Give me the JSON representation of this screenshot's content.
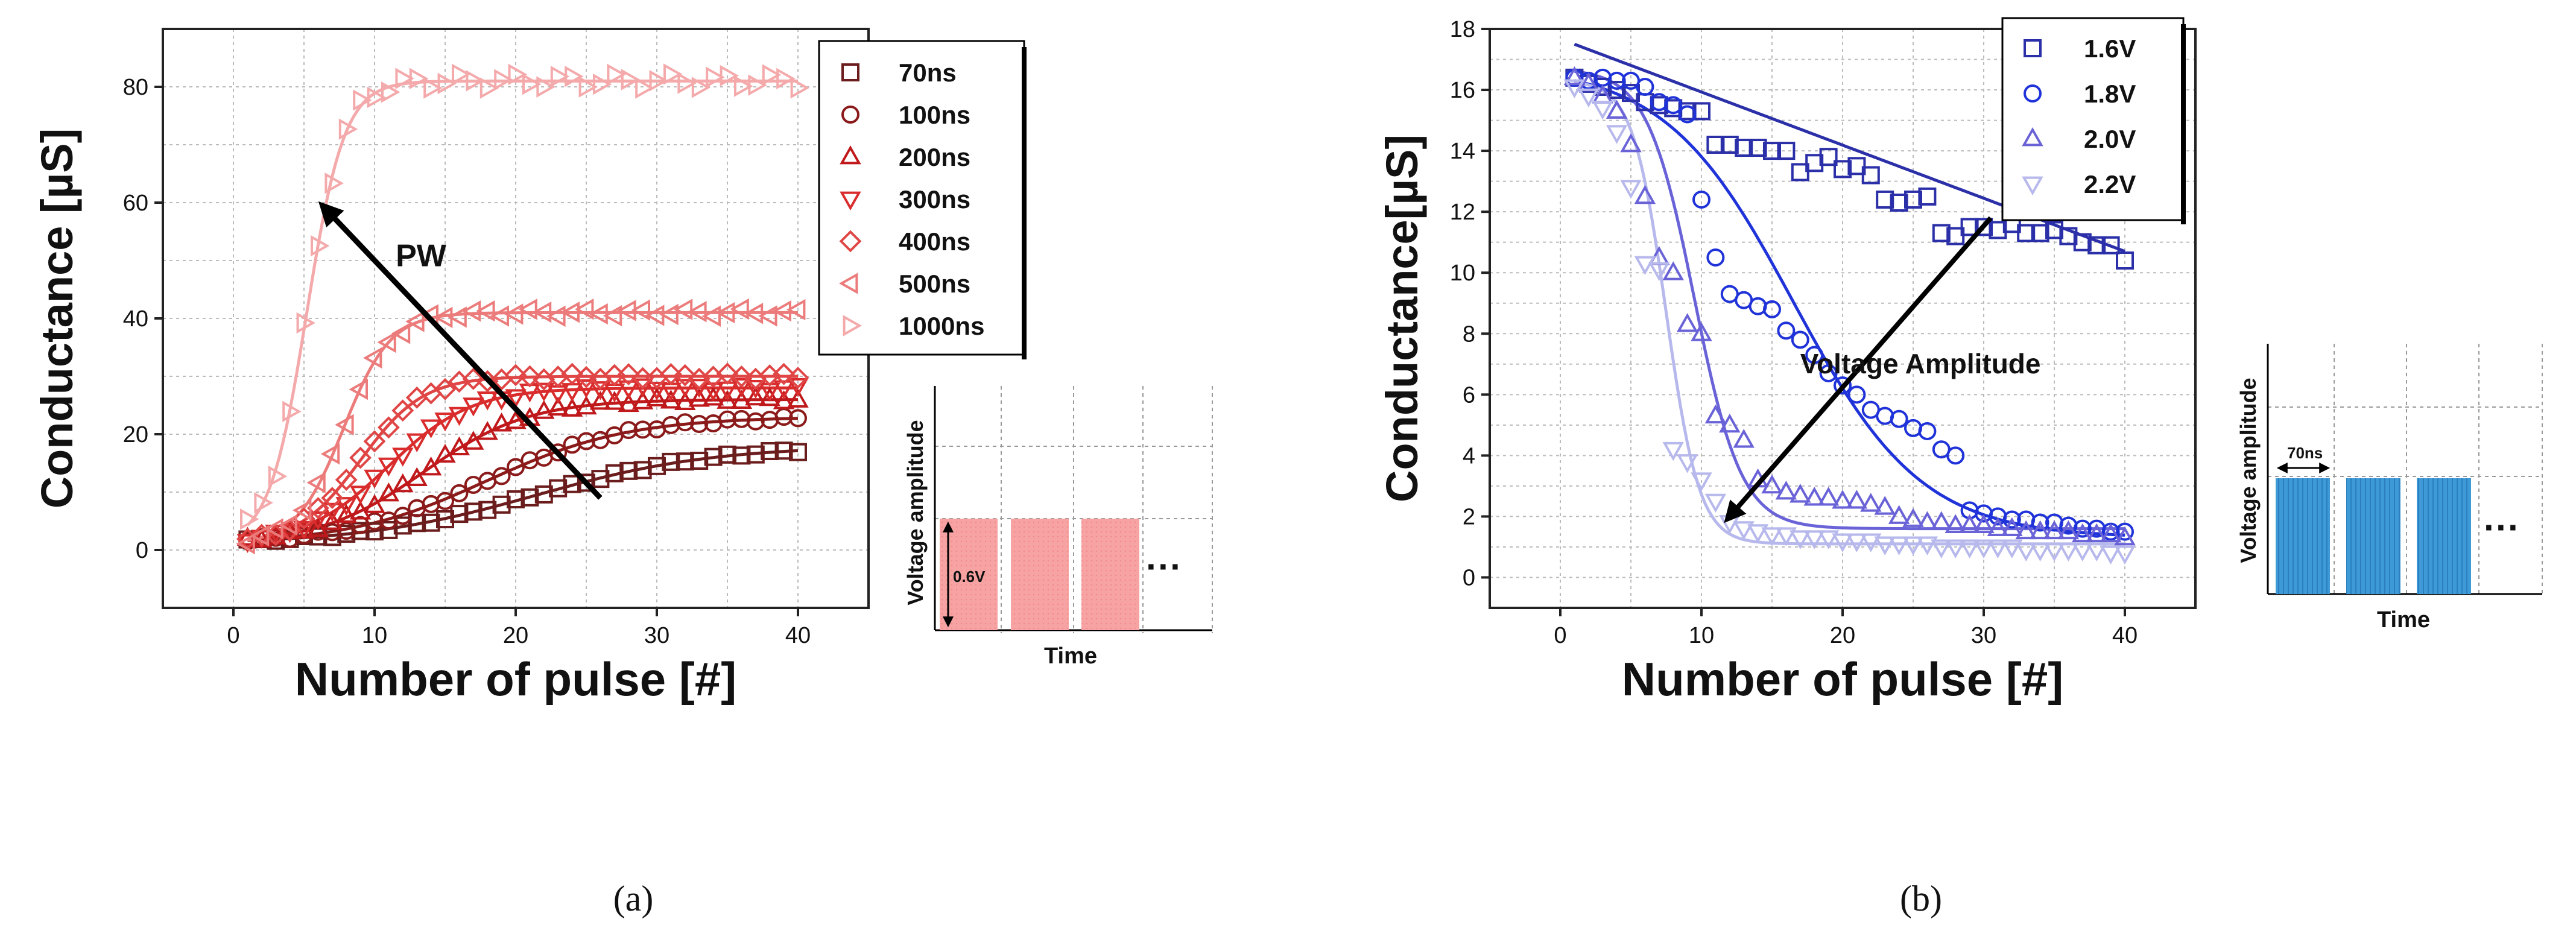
{
  "chart_data": [
    {
      "panel": "a",
      "type": "scatter",
      "caption": "(a)",
      "xlabel": "Number of pulse [#]",
      "ylabel": "Conductance [µS]",
      "xlim": [
        -5,
        45
      ],
      "ylim": [
        -10,
        90
      ],
      "xticks": [
        0,
        10,
        20,
        30,
        40
      ],
      "yticks": [
        0,
        20,
        40,
        60,
        80
      ],
      "grid": true,
      "legend_position": "top-right",
      "annotation": "PW",
      "arrow": {
        "from": [
          26,
          9
        ],
        "to": [
          6.5,
          59
        ]
      },
      "series": [
        {
          "name": "70ns",
          "marker": "square",
          "color": "#6b1d1d",
          "plateau": 18,
          "midpoint": 21.5,
          "rate": 0.16
        },
        {
          "name": "100ns",
          "marker": "circle",
          "color": "#8b1a1a",
          "plateau": 23,
          "midpoint": 18,
          "rate": 0.2
        },
        {
          "name": "200ns",
          "marker": "triangle-up",
          "color": "#c0191c",
          "plateau": 26,
          "midpoint": 13.5,
          "rate": 0.27
        },
        {
          "name": "300ns",
          "marker": "triangle-down",
          "color": "#d92c2c",
          "plateau": 28,
          "midpoint": 11,
          "rate": 0.34
        },
        {
          "name": "400ns",
          "marker": "diamond",
          "color": "#e04646",
          "plateau": 30,
          "midpoint": 9,
          "rate": 0.45
        },
        {
          "name": "500ns",
          "marker": "triangle-left",
          "color": "#ec7c7c",
          "plateau": 41,
          "midpoint": 7.8,
          "rate": 0.6
        },
        {
          "name": "1000ns",
          "marker": "triangle-right",
          "color": "#f4a9ab",
          "plateau": 81,
          "midpoint": 5.2,
          "rate": 0.75
        }
      ],
      "inset": {
        "ylabel": "Voltage amplitude",
        "xlabel": "Time",
        "pulse_label": "0.6V",
        "pulse_color": "#f7a3a3",
        "ellipsis": "···"
      }
    },
    {
      "panel": "b",
      "type": "scatter",
      "caption": "(b)",
      "xlabel": "Number of pulse [#]",
      "ylabel": "Conductance[µS]",
      "xlim": [
        -5,
        45
      ],
      "ylim": [
        -1,
        18
      ],
      "xticks": [
        0,
        10,
        20,
        30,
        40
      ],
      "yticks": [
        0,
        2,
        4,
        6,
        8,
        10,
        12,
        14,
        16,
        18
      ],
      "grid": true,
      "legend_position": "top-right",
      "annotation": "Voltage Amplitude",
      "arrow": {
        "from": [
          30.5,
          11.8
        ],
        "to": [
          12,
          2
        ]
      },
      "series": [
        {
          "name": "1.6V",
          "marker": "square",
          "color": "#2b2fa8",
          "x": [
            1,
            2,
            3,
            4,
            5,
            6,
            7,
            8,
            9,
            10,
            11,
            12,
            13,
            14,
            15,
            16,
            17,
            18,
            19,
            20,
            21,
            22,
            23,
            24,
            25,
            26,
            27,
            28,
            29,
            30,
            31,
            32,
            33,
            34,
            35,
            36,
            37,
            38,
            39,
            40
          ],
          "values": [
            16.4,
            16.2,
            16.1,
            16.0,
            15.9,
            15.6,
            15.5,
            15.4,
            15.3,
            15.3,
            14.2,
            14.2,
            14.1,
            14.1,
            14.0,
            14.0,
            13.3,
            13.6,
            13.8,
            13.4,
            13.5,
            13.2,
            12.4,
            12.3,
            12.4,
            12.5,
            11.3,
            11.2,
            11.5,
            11.5,
            11.4,
            11.6,
            11.3,
            11.3,
            11.4,
            11.2,
            11.0,
            10.9,
            10.9,
            10.4
          ]
        },
        {
          "name": "1.8V",
          "marker": "circle",
          "color": "#1f33d9",
          "x": [
            1,
            2,
            3,
            4,
            5,
            6,
            7,
            8,
            9,
            10,
            11,
            12,
            13,
            14,
            15,
            16,
            17,
            18,
            19,
            20,
            21,
            22,
            23,
            24,
            25,
            26,
            27,
            28,
            29,
            30,
            31,
            32,
            33,
            34,
            35,
            36,
            37,
            38,
            39,
            40
          ],
          "values": [
            16.4,
            16.3,
            16.4,
            16.3,
            16.3,
            16.1,
            15.6,
            15.5,
            15.2,
            12.4,
            10.5,
            9.3,
            9.1,
            8.9,
            8.8,
            8.1,
            7.8,
            7.3,
            6.7,
            6.3,
            6.0,
            5.5,
            5.3,
            5.2,
            4.9,
            4.8,
            4.2,
            4.0,
            2.2,
            2.1,
            2.0,
            1.9,
            1.9,
            1.8,
            1.8,
            1.7,
            1.6,
            1.6,
            1.5,
            1.5
          ]
        },
        {
          "name": "2.0V",
          "marker": "triangle-up",
          "color": "#6a63d8",
          "x": [
            1,
            2,
            3,
            4,
            5,
            6,
            7,
            8,
            9,
            10,
            11,
            12,
            13,
            14,
            15,
            16,
            17,
            18,
            19,
            20,
            21,
            22,
            23,
            24,
            25,
            26,
            27,
            28,
            29,
            30,
            31,
            32,
            33,
            34,
            35,
            36,
            37,
            38,
            39,
            40
          ],
          "values": [
            16.4,
            16.2,
            15.8,
            15.3,
            14.2,
            12.5,
            10.5,
            10.0,
            8.3,
            8.0,
            5.3,
            5.0,
            4.5,
            3.2,
            3.0,
            2.8,
            2.7,
            2.6,
            2.6,
            2.5,
            2.5,
            2.4,
            2.3,
            2.0,
            1.9,
            1.8,
            1.8,
            1.7,
            1.7,
            1.7,
            1.6,
            1.6,
            1.5,
            1.5,
            1.5,
            1.5,
            1.4,
            1.4,
            1.4,
            1.3
          ]
        },
        {
          "name": "2.2V",
          "marker": "triangle-down",
          "color": "#b7b8ec",
          "x": [
            1,
            2,
            3,
            4,
            5,
            6,
            7,
            8,
            9,
            10,
            11,
            12,
            13,
            14,
            15,
            16,
            17,
            18,
            19,
            20,
            21,
            22,
            23,
            24,
            25,
            26,
            27,
            28,
            29,
            30,
            31,
            32,
            33,
            34,
            35,
            36,
            37,
            38,
            39,
            40
          ],
          "values": [
            16.1,
            15.8,
            15.4,
            14.6,
            12.8,
            10.3,
            10.1,
            4.2,
            3.8,
            3.2,
            2.5,
            1.8,
            1.6,
            1.5,
            1.4,
            1.4,
            1.3,
            1.3,
            1.3,
            1.2,
            1.2,
            1.2,
            1.1,
            1.1,
            1.1,
            1.1,
            1.0,
            1.0,
            1.0,
            1.0,
            1.0,
            1.0,
            0.9,
            0.9,
            0.9,
            0.9,
            0.9,
            0.9,
            0.8,
            0.8
          ]
        }
      ],
      "fits": [
        {
          "name": "1.6V",
          "start": 17.5,
          "end": 10.7,
          "shape": "linear"
        },
        {
          "name": "1.8V",
          "plateau_high": 16.8,
          "plateau_low": 1.3,
          "midpoint": 16.5,
          "rate": 0.22
        },
        {
          "name": "2.0V",
          "plateau_high": 16.7,
          "plateau_low": 1.6,
          "midpoint": 9.5,
          "rate": 0.6
        },
        {
          "name": "2.2V",
          "plateau_high": 16.3,
          "plateau_low": 1.1,
          "midpoint": 7.5,
          "rate": 0.85
        }
      ],
      "inset": {
        "ylabel": "Voltage amplitude",
        "xlabel": "Time",
        "pulse_label": "70ns",
        "pulse_color": "#3e9ad6",
        "ellipsis": "···"
      }
    }
  ]
}
